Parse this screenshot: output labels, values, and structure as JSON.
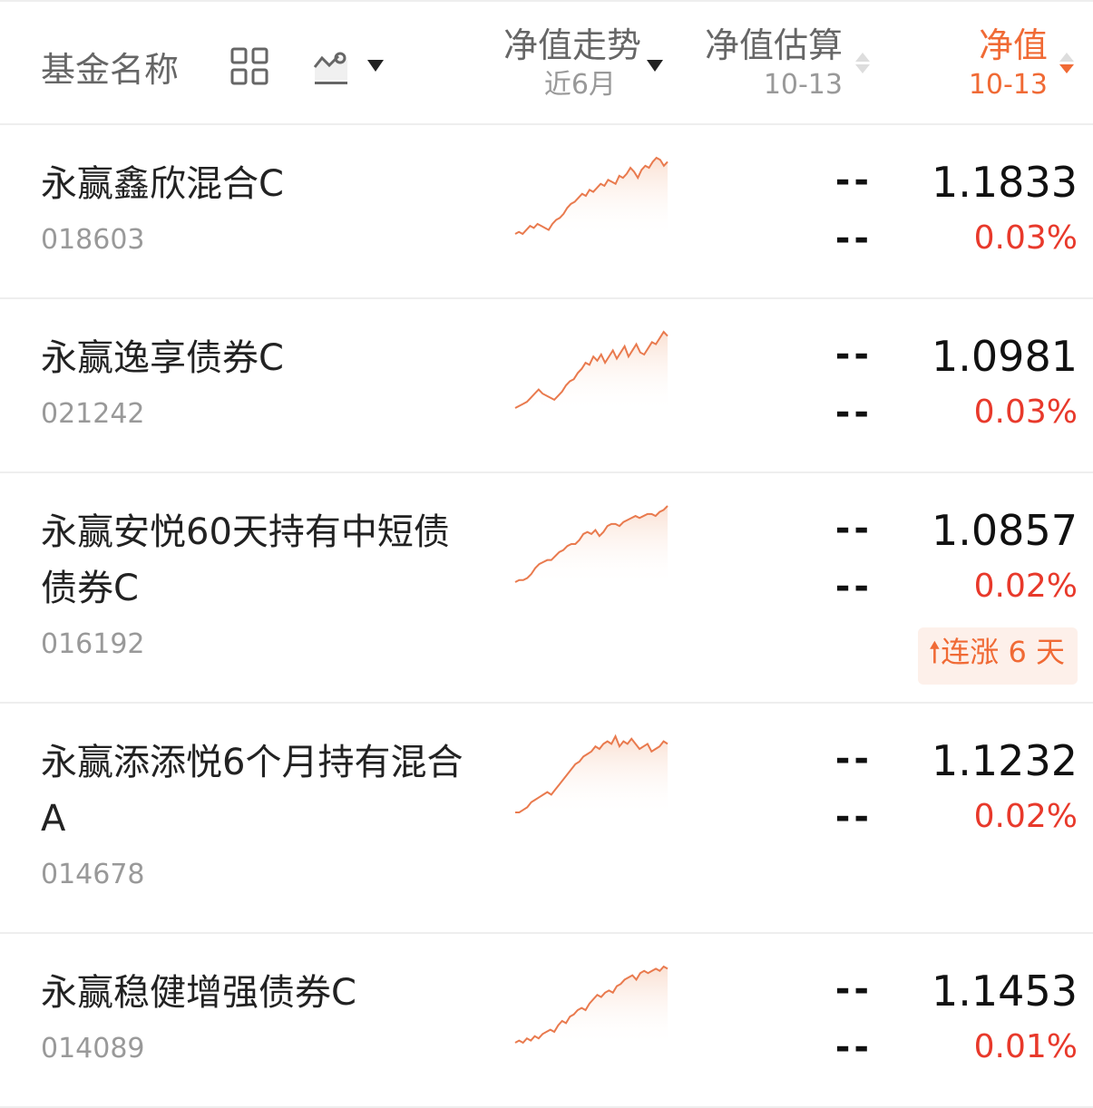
{
  "header": {
    "name_label": "基金名称",
    "trend_label": "净值走势",
    "trend_period": "近6月",
    "estimate_label": "净值估算",
    "estimate_date": "10-13",
    "nav_label": "净值",
    "nav_date": "10-13"
  },
  "colors": {
    "accent": "#f06a35",
    "up": "#e8392b",
    "spark": "#e97a4e"
  },
  "funds": [
    {
      "name": "永赢鑫欣混合C",
      "code": "018603",
      "est": "--",
      "est_pct": "--",
      "nav": "1.1833",
      "pct": "0.03%",
      "trend": [
        2,
        3,
        2,
        4,
        6,
        5,
        7,
        6,
        5,
        4,
        7,
        9,
        10,
        12,
        15,
        17,
        18,
        20,
        22,
        21,
        24,
        23,
        25,
        27,
        26,
        29,
        28,
        27,
        31,
        30,
        32,
        35,
        33,
        30,
        34,
        36,
        35,
        38,
        40,
        39,
        36,
        38
      ]
    },
    {
      "name": "永赢逸享债券C",
      "code": "021242",
      "est": "--",
      "est_pct": "--",
      "nav": "1.0981",
      "pct": "0.03%",
      "trend": [
        3,
        4,
        5,
        6,
        8,
        10,
        12,
        10,
        9,
        8,
        7,
        9,
        11,
        14,
        16,
        17,
        20,
        22,
        25,
        24,
        28,
        26,
        29,
        25,
        28,
        31,
        27,
        30,
        33,
        28,
        31,
        34,
        30,
        29,
        32,
        35,
        34,
        37,
        40,
        38
      ]
    },
    {
      "name": "永赢安悦60天持有中短债债券C",
      "code": "016192",
      "est": "--",
      "est_pct": "--",
      "nav": "1.0857",
      "pct": "0.02%",
      "badge": "连涨 6 天",
      "trend": [
        2,
        3,
        3,
        4,
        6,
        9,
        11,
        12,
        13,
        13,
        15,
        17,
        18,
        20,
        21,
        21,
        23,
        26,
        27,
        26,
        28,
        25,
        27,
        30,
        31,
        31,
        30,
        32,
        33,
        34,
        35,
        34,
        35,
        36,
        36,
        35,
        37,
        38,
        40
      ]
    },
    {
      "name": "永赢添添悦6个月持有混合A",
      "code": "014678",
      "est": "--",
      "est_pct": "--",
      "nav": "1.1232",
      "pct": "0.02%",
      "trend": [
        2,
        2,
        3,
        4,
        6,
        7,
        8,
        9,
        10,
        9,
        11,
        13,
        15,
        17,
        19,
        21,
        22,
        24,
        25,
        26,
        28,
        27,
        29,
        30,
        29,
        32,
        28,
        30,
        29,
        31,
        29,
        27,
        28,
        29,
        26,
        27,
        28,
        30,
        29
      ]
    },
    {
      "name": "永赢稳健增强债券C",
      "code": "014089",
      "est": "--",
      "est_pct": "--",
      "nav": "1.1453",
      "pct": "0.01%",
      "trend": [
        2,
        3,
        2,
        4,
        3,
        5,
        4,
        6,
        7,
        8,
        7,
        10,
        12,
        11,
        14,
        15,
        17,
        18,
        17,
        20,
        22,
        24,
        23,
        25,
        26,
        25,
        28,
        29,
        31,
        32,
        33,
        31,
        34,
        35,
        34,
        35,
        36,
        35,
        37,
        36
      ]
    }
  ]
}
